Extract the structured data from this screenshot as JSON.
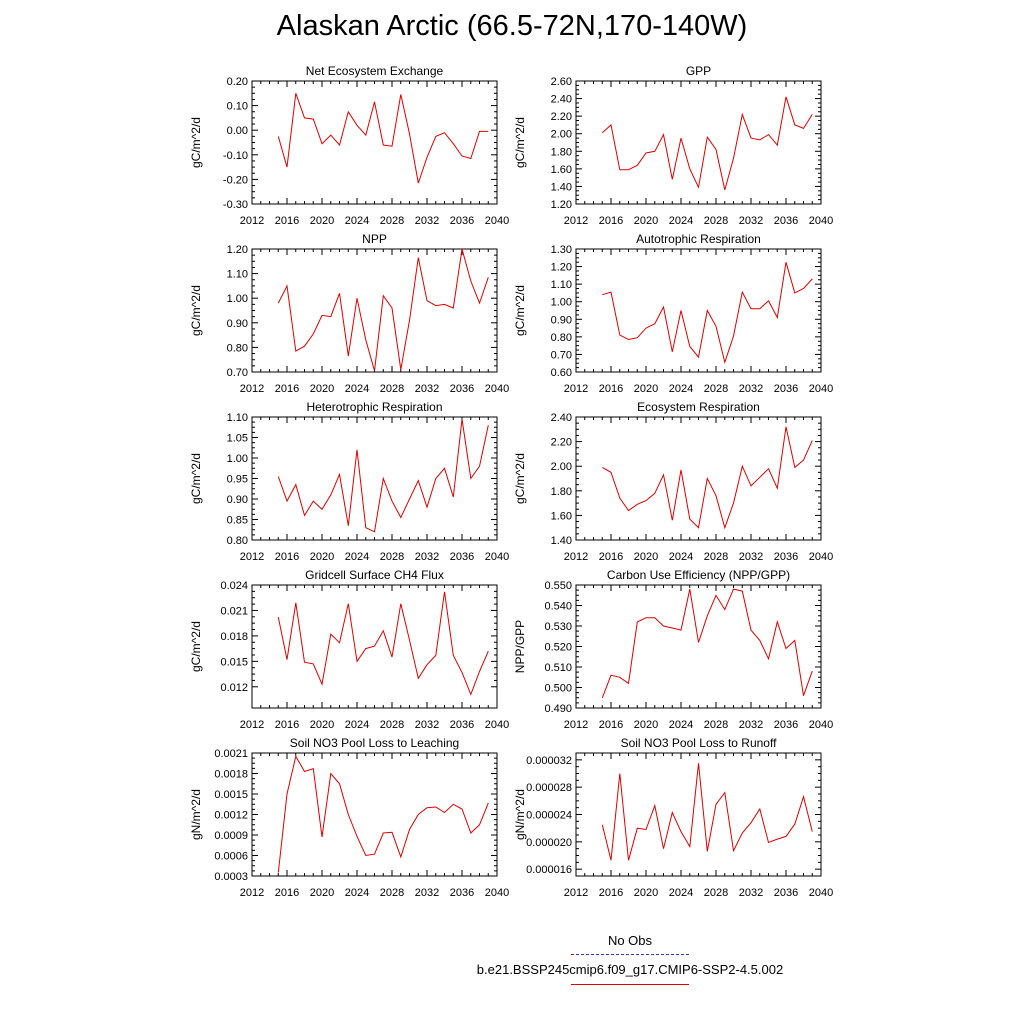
{
  "title": "Alaskan Arctic (66.5-72N,170-140W)",
  "legend": {
    "entries": [
      {
        "label": "No Obs",
        "color": "#3333cc",
        "style": "dashed"
      },
      {
        "label": "b.e21.BSSP245cmip6.f09_g17.CMIP6-SSP2-4.5.002",
        "color": "#e00000",
        "style": "solid"
      }
    ]
  },
  "chart_data": [
    {
      "type": "line",
      "title": "Net Ecosystem Exchange",
      "ylabel": "gC/m^2/d",
      "xlim": [
        2012,
        2040
      ],
      "x_ticks": [
        "2012",
        "2016",
        "2020",
        "2024",
        "2028",
        "2032",
        "2036",
        "2040"
      ],
      "ylim": [
        -0.3,
        0.2
      ],
      "y_ticks": [
        "-0.30",
        "-0.20",
        "-0.10",
        "0.00",
        "0.10",
        "0.20"
      ],
      "series": [
        {
          "color": "#e00000",
          "x": [
            2015,
            2016,
            2017,
            2018,
            2019,
            2020,
            2021,
            2022,
            2023,
            2024,
            2025,
            2026,
            2027,
            2028,
            2029,
            2030,
            2031,
            2032,
            2033,
            2034,
            2035,
            2036,
            2037,
            2038,
            2039
          ],
          "values": [
            -0.025,
            -0.15,
            0.15,
            0.05,
            0.045,
            -0.055,
            -0.02,
            -0.06,
            0.075,
            0.02,
            -0.02,
            0.115,
            -0.06,
            -0.065,
            0.145,
            -0.015,
            -0.215,
            -0.11,
            -0.025,
            -0.01,
            -0.055,
            -0.105,
            -0.115,
            -0.005,
            -0.005
          ]
        }
      ]
    },
    {
      "type": "line",
      "title": "GPP",
      "ylabel": "gC/m^2/d",
      "xlim": [
        2012,
        2040
      ],
      "x_ticks": [
        "2012",
        "2016",
        "2020",
        "2024",
        "2028",
        "2032",
        "2036",
        "2040"
      ],
      "ylim": [
        1.2,
        2.6
      ],
      "y_ticks": [
        "1.20",
        "1.40",
        "1.60",
        "1.80",
        "2.00",
        "2.20",
        "2.40",
        "2.60"
      ],
      "series": [
        {
          "color": "#e00000",
          "x": [
            2015,
            2016,
            2017,
            2018,
            2019,
            2020,
            2021,
            2022,
            2023,
            2024,
            2025,
            2026,
            2027,
            2028,
            2029,
            2030,
            2031,
            2032,
            2033,
            2034,
            2035,
            2036,
            2037,
            2038,
            2039
          ],
          "values": [
            2.01,
            2.1,
            1.59,
            1.59,
            1.64,
            1.78,
            1.8,
            1.99,
            1.48,
            1.95,
            1.6,
            1.39,
            1.96,
            1.82,
            1.36,
            1.72,
            2.22,
            1.95,
            1.93,
            1.99,
            1.87,
            2.42,
            2.1,
            2.06,
            2.22
          ]
        }
      ]
    },
    {
      "type": "line",
      "title": "NPP",
      "ylabel": "gC/m^2/d",
      "xlim": [
        2012,
        2040
      ],
      "x_ticks": [
        "2012",
        "2016",
        "2020",
        "2024",
        "2028",
        "2032",
        "2036",
        "2040"
      ],
      "ylim": [
        0.7,
        1.2
      ],
      "y_ticks": [
        "0.70",
        "0.80",
        "0.90",
        "1.00",
        "1.10",
        "1.20"
      ],
      "series": [
        {
          "color": "#e00000",
          "x": [
            2015,
            2016,
            2017,
            2018,
            2019,
            2020,
            2021,
            2022,
            2023,
            2024,
            2025,
            2026,
            2027,
            2028,
            2029,
            2030,
            2031,
            2032,
            2033,
            2034,
            2035,
            2036,
            2037,
            2038,
            2039
          ],
          "values": [
            0.98,
            1.05,
            0.785,
            0.805,
            0.855,
            0.93,
            0.925,
            1.02,
            0.765,
            1.0,
            0.83,
            0.705,
            1.01,
            0.96,
            0.71,
            0.91,
            1.165,
            0.99,
            0.97,
            0.975,
            0.96,
            1.2,
            1.07,
            0.98,
            1.085
          ]
        }
      ]
    },
    {
      "type": "line",
      "title": "Autotrophic Respiration",
      "ylabel": "gC/m^2/d",
      "xlim": [
        2012,
        2040
      ],
      "x_ticks": [
        "2012",
        "2016",
        "2020",
        "2024",
        "2028",
        "2032",
        "2036",
        "2040"
      ],
      "ylim": [
        0.6,
        1.3
      ],
      "y_ticks": [
        "0.60",
        "0.70",
        "0.80",
        "0.90",
        "1.00",
        "1.10",
        "1.20",
        "1.30"
      ],
      "series": [
        {
          "color": "#e00000",
          "x": [
            2015,
            2016,
            2017,
            2018,
            2019,
            2020,
            2021,
            2022,
            2023,
            2024,
            2025,
            2026,
            2027,
            2028,
            2029,
            2030,
            2031,
            2032,
            2033,
            2034,
            2035,
            2036,
            2037,
            2038,
            2039
          ],
          "values": [
            1.04,
            1.055,
            0.81,
            0.785,
            0.795,
            0.85,
            0.875,
            0.97,
            0.715,
            0.95,
            0.745,
            0.685,
            0.95,
            0.86,
            0.655,
            0.805,
            1.055,
            0.96,
            0.96,
            1.005,
            0.91,
            1.225,
            1.05,
            1.075,
            1.13
          ]
        }
      ]
    },
    {
      "type": "line",
      "title": "Heterotrophic Respiration",
      "ylabel": "gC/m^2/d",
      "xlim": [
        2012,
        2040
      ],
      "x_ticks": [
        "2012",
        "2016",
        "2020",
        "2024",
        "2028",
        "2032",
        "2036",
        "2040"
      ],
      "ylim": [
        0.8,
        1.1
      ],
      "y_ticks": [
        "0.80",
        "0.85",
        "0.90",
        "0.95",
        "1.00",
        "1.05",
        "1.10"
      ],
      "series": [
        {
          "color": "#e00000",
          "x": [
            2015,
            2016,
            2017,
            2018,
            2019,
            2020,
            2021,
            2022,
            2023,
            2024,
            2025,
            2026,
            2027,
            2028,
            2029,
            2030,
            2031,
            2032,
            2033,
            2034,
            2035,
            2036,
            2037,
            2038,
            2039
          ],
          "values": [
            0.955,
            0.895,
            0.935,
            0.86,
            0.895,
            0.875,
            0.91,
            0.96,
            0.835,
            1.02,
            0.83,
            0.82,
            0.95,
            0.895,
            0.855,
            0.9,
            0.945,
            0.88,
            0.95,
            0.975,
            0.905,
            1.095,
            0.95,
            0.98,
            1.08
          ]
        }
      ]
    },
    {
      "type": "line",
      "title": "Ecosystem Respiration",
      "ylabel": "gC/m^2/d",
      "xlim": [
        2012,
        2040
      ],
      "x_ticks": [
        "2012",
        "2016",
        "2020",
        "2024",
        "2028",
        "2032",
        "2036",
        "2040"
      ],
      "ylim": [
        1.4,
        2.4
      ],
      "y_ticks": [
        "1.40",
        "1.60",
        "1.80",
        "2.00",
        "2.20",
        "2.40"
      ],
      "series": [
        {
          "color": "#e00000",
          "x": [
            2015,
            2016,
            2017,
            2018,
            2019,
            2020,
            2021,
            2022,
            2023,
            2024,
            2025,
            2026,
            2027,
            2028,
            2029,
            2030,
            2031,
            2032,
            2033,
            2034,
            2035,
            2036,
            2037,
            2038,
            2039
          ],
          "values": [
            1.99,
            1.95,
            1.74,
            1.64,
            1.69,
            1.72,
            1.78,
            1.93,
            1.56,
            1.97,
            1.57,
            1.5,
            1.9,
            1.76,
            1.5,
            1.7,
            2.0,
            1.84,
            1.91,
            1.98,
            1.82,
            2.32,
            1.99,
            2.05,
            2.21
          ]
        }
      ]
    },
    {
      "type": "line",
      "title": "Gridcell Surface CH4 Flux",
      "ylabel": "gC/m^2/d",
      "xlim": [
        2012,
        2040
      ],
      "x_ticks": [
        "2012",
        "2016",
        "2020",
        "2024",
        "2028",
        "2032",
        "2036",
        "2040"
      ],
      "ylim": [
        0.0095,
        0.024
      ],
      "y_ticks": [
        "0.012",
        "0.015",
        "0.018",
        "0.021",
        "0.024"
      ],
      "y_tick_values": [
        0.012,
        0.015,
        0.018,
        0.021,
        0.024
      ],
      "series": [
        {
          "color": "#e00000",
          "x": [
            2015,
            2016,
            2017,
            2018,
            2019,
            2020,
            2021,
            2022,
            2023,
            2024,
            2025,
            2026,
            2027,
            2028,
            2029,
            2030,
            2031,
            2032,
            2033,
            2034,
            2035,
            2036,
            2037,
            2038,
            2039
          ],
          "values": [
            0.0202,
            0.0152,
            0.0219,
            0.0149,
            0.0147,
            0.0123,
            0.0182,
            0.0172,
            0.0218,
            0.015,
            0.0165,
            0.0168,
            0.0186,
            0.0155,
            0.0218,
            0.0175,
            0.013,
            0.0146,
            0.0157,
            0.0232,
            0.0157,
            0.0137,
            0.0111,
            0.0138,
            0.0162
          ]
        }
      ]
    },
    {
      "type": "line",
      "title": "Carbon Use Efficiency (NPP/GPP)",
      "ylabel": "NPP/GPP",
      "xlim": [
        2012,
        2040
      ],
      "x_ticks": [
        "2012",
        "2016",
        "2020",
        "2024",
        "2028",
        "2032",
        "2036",
        "2040"
      ],
      "ylim": [
        0.49,
        0.55
      ],
      "y_ticks": [
        "0.490",
        "0.500",
        "0.510",
        "0.520",
        "0.530",
        "0.540",
        "0.550"
      ],
      "series": [
        {
          "color": "#e00000",
          "x": [
            2015,
            2016,
            2017,
            2018,
            2019,
            2020,
            2021,
            2022,
            2023,
            2024,
            2025,
            2026,
            2027,
            2028,
            2029,
            2030,
            2031,
            2032,
            2033,
            2034,
            2035,
            2036,
            2037,
            2038,
            2039
          ],
          "values": [
            0.495,
            0.506,
            0.505,
            0.502,
            0.532,
            0.534,
            0.534,
            0.53,
            0.529,
            0.528,
            0.548,
            0.522,
            0.535,
            0.545,
            0.538,
            0.548,
            0.547,
            0.528,
            0.523,
            0.514,
            0.532,
            0.519,
            0.523,
            0.496,
            0.508
          ]
        }
      ]
    },
    {
      "type": "line",
      "title": "Soil NO3 Pool Loss to Leaching",
      "ylabel": "gN/m^2/d",
      "xlim": [
        2012,
        2040
      ],
      "x_ticks": [
        "2012",
        "2016",
        "2020",
        "2024",
        "2028",
        "2032",
        "2036",
        "2040"
      ],
      "ylim": [
        0.0003,
        0.0021
      ],
      "y_ticks": [
        "0.0003",
        "0.0006",
        "0.0009",
        "0.0012",
        "0.0015",
        "0.0018",
        "0.0021"
      ],
      "series": [
        {
          "color": "#e00000",
          "x": [
            2015,
            2016,
            2017,
            2018,
            2019,
            2020,
            2021,
            2022,
            2023,
            2024,
            2025,
            2026,
            2027,
            2028,
            2029,
            2030,
            2031,
            2032,
            2033,
            2034,
            2035,
            2036,
            2037,
            2038,
            2039
          ],
          "values": [
            0.00035,
            0.0015,
            0.00205,
            0.00183,
            0.00187,
            0.00087,
            0.0018,
            0.00165,
            0.0012,
            0.00088,
            0.0006,
            0.00062,
            0.00093,
            0.00094,
            0.00058,
            0.00098,
            0.0012,
            0.0013,
            0.00131,
            0.00123,
            0.00135,
            0.00128,
            0.00093,
            0.00105,
            0.00137
          ]
        }
      ]
    },
    {
      "type": "line",
      "title": "Soil NO3 Pool Loss to Runoff",
      "ylabel": "gN/m^2/d",
      "xlim": [
        2012,
        2040
      ],
      "x_ticks": [
        "2012",
        "2016",
        "2020",
        "2024",
        "2028",
        "2032",
        "2036",
        "2040"
      ],
      "ylim": [
        1.5e-05,
        3.3e-05
      ],
      "y_ticks": [
        "0.000016",
        "0.000020",
        "0.000024",
        "0.000028",
        "0.000032"
      ],
      "y_tick_values": [
        1.6e-05,
        2e-05,
        2.4e-05,
        2.8e-05,
        3.2e-05
      ],
      "series": [
        {
          "color": "#e00000",
          "x": [
            2015,
            2016,
            2017,
            2018,
            2019,
            2020,
            2021,
            2022,
            2023,
            2024,
            2025,
            2026,
            2027,
            2028,
            2029,
            2030,
            2031,
            2032,
            2033,
            2034,
            2035,
            2036,
            2037,
            2038,
            2039
          ],
          "values": [
            2.25e-05,
            1.73e-05,
            3e-05,
            1.73e-05,
            2.2e-05,
            2.18e-05,
            2.53e-05,
            1.9e-05,
            2.43e-05,
            2.15e-05,
            1.93e-05,
            3.15e-05,
            1.86e-05,
            2.55e-05,
            2.72e-05,
            1.87e-05,
            2.13e-05,
            2.28e-05,
            2.48e-05,
            1.99e-05,
            2.04e-05,
            2.08e-05,
            2.26e-05,
            2.66e-05,
            2.15e-05
          ]
        }
      ]
    }
  ]
}
